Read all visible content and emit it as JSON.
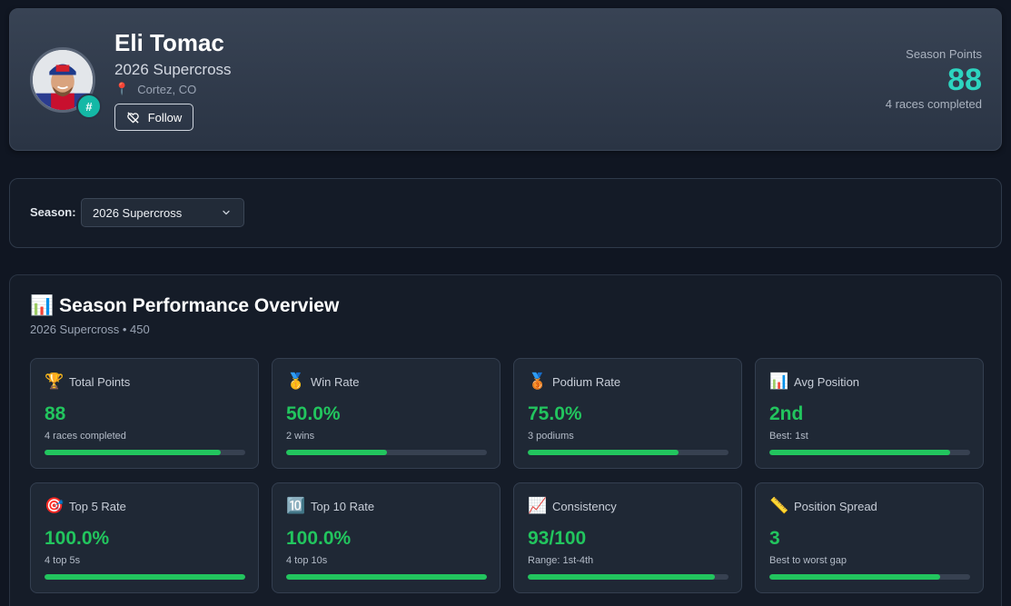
{
  "rider": {
    "name": "Eli Tomac",
    "series": "2026 Supercross",
    "location": "Cortez, CO",
    "badge": "#",
    "follow_label": "Follow"
  },
  "season_points": {
    "label": "Season Points",
    "value": "88",
    "sub": "4 races completed"
  },
  "season_selector": {
    "label": "Season:",
    "selected": "2026 Supercross"
  },
  "overview": {
    "icon": "📊",
    "title": "Season Performance Overview",
    "subtitle": "2026 Supercross • 450"
  },
  "stats": [
    {
      "icon": "🏆",
      "icon_name": "trophy-icon",
      "label": "Total Points",
      "value": "88",
      "sub": "4 races completed",
      "progress": 0.88
    },
    {
      "icon": "🥇",
      "icon_name": "gold-medal-icon",
      "label": "Win Rate",
      "value": "50.0%",
      "sub": "2 wins",
      "progress": 0.5
    },
    {
      "icon": "🥉",
      "icon_name": "bronze-medal-icon",
      "label": "Podium Rate",
      "value": "75.0%",
      "sub": "3 podiums",
      "progress": 0.75
    },
    {
      "icon": "📊",
      "icon_name": "bar-chart-icon",
      "label": "Avg Position",
      "value": "2nd",
      "sub": "Best: 1st",
      "progress": 0.9
    },
    {
      "icon": "🎯",
      "icon_name": "target-icon",
      "label": "Top 5 Rate",
      "value": "100.0%",
      "sub": "4 top 5s",
      "progress": 1.0
    },
    {
      "icon": "🔟",
      "icon_name": "keycap-ten-icon",
      "label": "Top 10 Rate",
      "value": "100.0%",
      "sub": "4 top 10s",
      "progress": 1.0
    },
    {
      "icon": "📈",
      "icon_name": "trend-up-icon",
      "label": "Consistency",
      "value": "93/100",
      "sub": "Range: 1st-4th",
      "progress": 0.93
    },
    {
      "icon": "📏",
      "icon_name": "ruler-icon",
      "label": "Position Spread",
      "value": "3",
      "sub": "Best to worst gap",
      "progress": 0.85
    }
  ],
  "colors": {
    "accent_teal": "#2dd4bf",
    "stat_green": "#22c55e",
    "background": "#101622"
  }
}
